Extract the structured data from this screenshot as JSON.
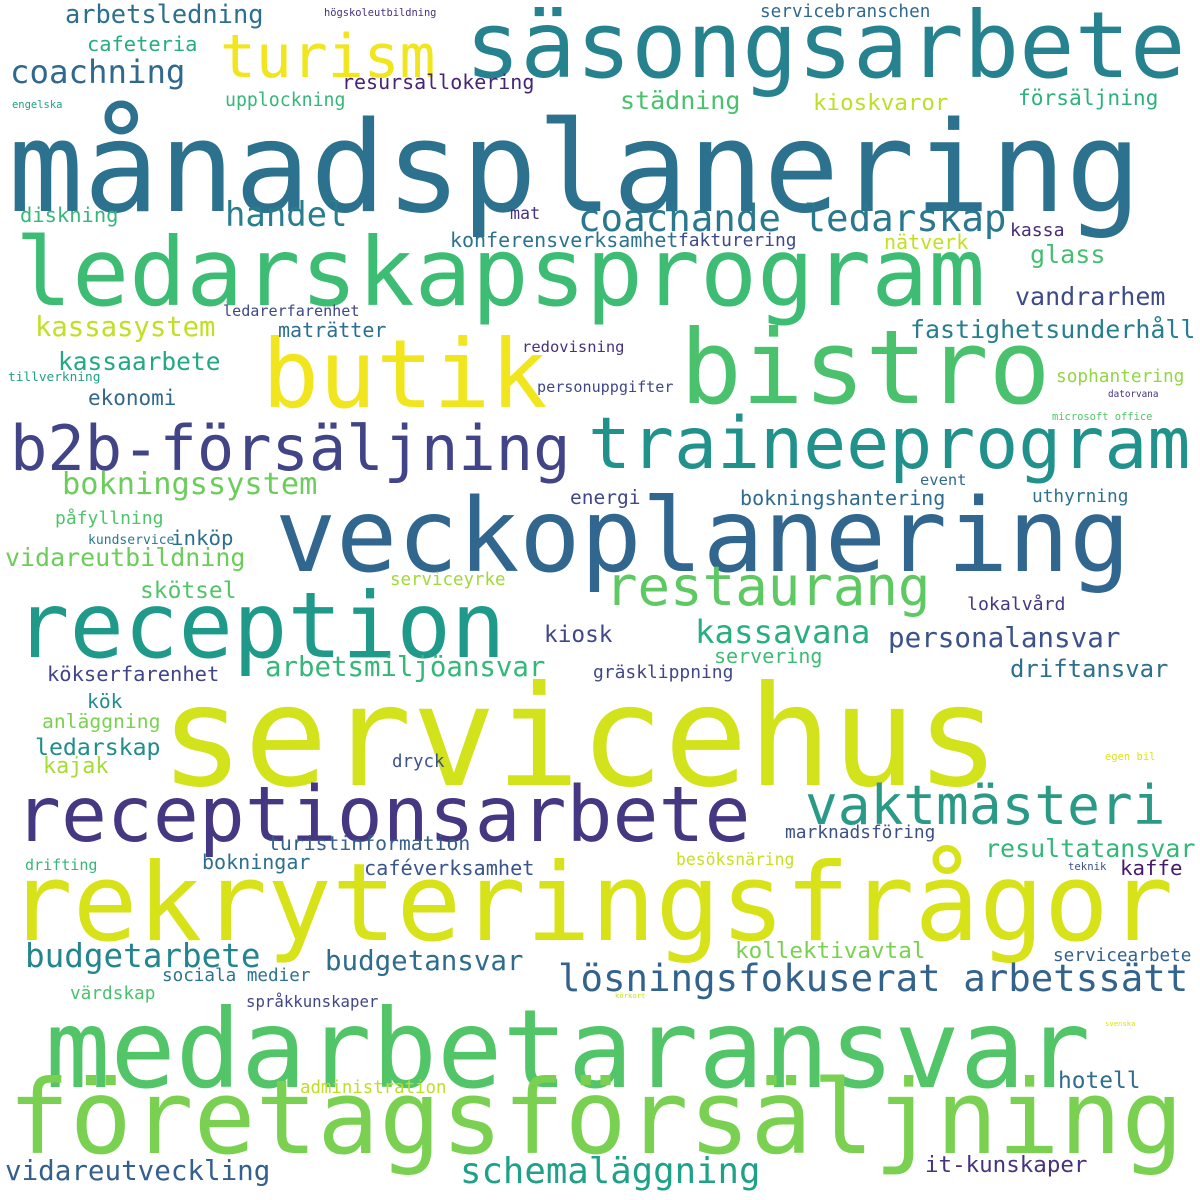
{
  "words": [
    {
      "text": "servicehus",
      "color": "#d2e21b"
    },
    {
      "text": "månadsplanering",
      "color": "#2c718e"
    },
    {
      "text": "rekryteringsfrågor",
      "color": "#d8e219"
    },
    {
      "text": "medarbetaransvar",
      "color": "#52c569"
    },
    {
      "text": "företagsförsäljning",
      "color": "#7ad151"
    },
    {
      "text": "veckoplanering",
      "color": "#31668e"
    },
    {
      "text": "ledarskapsprogram",
      "color": "#3dbc74"
    },
    {
      "text": "bistro",
      "color": "#4ac16d"
    },
    {
      "text": "säsongsarbete",
      "color": "#26828e"
    },
    {
      "text": "reception",
      "color": "#1f9a8a"
    },
    {
      "text": "receptionsarbete",
      "color": "#453781"
    },
    {
      "text": "butik",
      "color": "#f1e51d"
    },
    {
      "text": "b2b-försäljning",
      "color": "#414487"
    },
    {
      "text": "traineeprogram",
      "color": "#21918c"
    },
    {
      "text": "restaurang",
      "color": "#5ec962"
    },
    {
      "text": "vaktmästeri",
      "color": "#2a9a87"
    },
    {
      "text": "turism",
      "color": "#f1e51d"
    },
    {
      "text": "lösningsfokuserat arbetssätt",
      "color": "#33638d"
    },
    {
      "text": "schemaläggning",
      "color": "#1fa187"
    },
    {
      "text": "coachande ledarskap",
      "color": "#2a788e"
    },
    {
      "text": "bokningssystem",
      "color": "#6ccd5a"
    },
    {
      "text": "budgetarbete",
      "color": "#25858e"
    },
    {
      "text": "kassasystem",
      "color": "#c2df23"
    },
    {
      "text": "arbetsmiljöansvar",
      "color": "#35b779"
    },
    {
      "text": "vidareutbildning",
      "color": "#6ccd5a"
    },
    {
      "text": "vidareutveckling",
      "color": "#355f8d"
    },
    {
      "text": "coachning",
      "color": "#30698e"
    },
    {
      "text": "handel",
      "color": "#287d8e"
    },
    {
      "text": "kassaarbete",
      "color": "#22a884"
    },
    {
      "text": "kassavana",
      "color": "#29af7f"
    },
    {
      "text": "personalansvar",
      "color": "#3b528b"
    },
    {
      "text": "driftansvar",
      "color": "#2d708e"
    },
    {
      "text": "budgetansvar",
      "color": "#2f6c8e"
    },
    {
      "text": "resultatansvar",
      "color": "#35b779"
    },
    {
      "text": "fastighetsunderhåll",
      "color": "#277f8e"
    },
    {
      "text": "vandrarhem",
      "color": "#3e4a89"
    },
    {
      "text": "arbetsledning",
      "color": "#2d708e"
    },
    {
      "text": "ledarskap",
      "color": "#228c8d"
    },
    {
      "text": "turistinformation",
      "color": "#355f8d"
    },
    {
      "text": "glass",
      "color": "#44bf70"
    },
    {
      "text": "hotell",
      "color": "#2f6c8e"
    },
    {
      "text": "it-kunskaper",
      "color": "#46337e"
    },
    {
      "text": "städning",
      "color": "#4ac16d"
    },
    {
      "text": "försäljning",
      "color": "#2db27d"
    },
    {
      "text": "kioskvaror",
      "color": "#bddf26"
    },
    {
      "text": "konferensverksamhet",
      "color": "#2c728e"
    },
    {
      "text": "caféverksamhet",
      "color": "#39558c"
    },
    {
      "text": "kiosk",
      "color": "#3f4788"
    },
    {
      "text": "kaffe",
      "color": "#48186a"
    },
    {
      "text": "kollektivavtal",
      "color": "#7ad151"
    },
    {
      "text": "ekonomi",
      "color": "#31688e"
    },
    {
      "text": "resursallokering",
      "color": "#482475"
    },
    {
      "text": "cafeteria",
      "color": "#27ad81"
    },
    {
      "text": "upplockning",
      "color": "#35b779"
    },
    {
      "text": "diskning",
      "color": "#35b779"
    },
    {
      "text": "inköp",
      "color": "#2d708e"
    },
    {
      "text": "påfyllning",
      "color": "#50c46a"
    },
    {
      "text": "skötsel",
      "color": "#52c569"
    },
    {
      "text": "kökserfarenhet",
      "color": "#414487"
    },
    {
      "text": "kök",
      "color": "#228c8d"
    },
    {
      "text": "anläggning",
      "color": "#7ad151"
    },
    {
      "text": "kajak",
      "color": "#a8db34"
    },
    {
      "text": "servering",
      "color": "#3dbc74"
    },
    {
      "text": "gräsklippning",
      "color": "#404688"
    },
    {
      "text": "dryck",
      "color": "#3b528b"
    },
    {
      "text": "lokalvård",
      "color": "#453882"
    },
    {
      "text": "besöksnäring",
      "color": "#c8e020"
    },
    {
      "text": "marknadsföring",
      "color": "#3c4f8a"
    },
    {
      "text": "bokningar",
      "color": "#2e6f8e"
    },
    {
      "text": "sociala medier",
      "color": "#2c738e"
    },
    {
      "text": "värdskap",
      "color": "#4ac16d"
    },
    {
      "text": "språkkunskaper",
      "color": "#404688"
    },
    {
      "text": "administration",
      "color": "#bddf26"
    },
    {
      "text": "servicearbete",
      "color": "#34608d"
    },
    {
      "text": "bokningshantering",
      "color": "#2f6b8e"
    },
    {
      "text": "uthyrning",
      "color": "#2c728e"
    },
    {
      "text": "energi",
      "color": "#3f4788"
    },
    {
      "text": "event",
      "color": "#2f6b8e"
    },
    {
      "text": "serviceyrke",
      "color": "#a0da39"
    },
    {
      "text": "sophantering",
      "color": "#90d743"
    },
    {
      "text": "personuppgifter",
      "color": "#3f4788"
    },
    {
      "text": "redovisning",
      "color": "#46327e"
    },
    {
      "text": "maträtter",
      "color": "#2d708e"
    },
    {
      "text": "ledarerfarenhet",
      "color": "#3f4788"
    },
    {
      "text": "nätverk",
      "color": "#c2df23"
    },
    {
      "text": "fakturering",
      "color": "#3e4989"
    },
    {
      "text": "kassa",
      "color": "#472c7a"
    },
    {
      "text": "mat",
      "color": "#46327e"
    },
    {
      "text": "servicebranschen",
      "color": "#31688e"
    },
    {
      "text": "högskoleutbildning",
      "color": "#46337e"
    },
    {
      "text": "engelska",
      "color": "#1fa187"
    },
    {
      "text": "tillverkning",
      "color": "#1fa187"
    },
    {
      "text": "microsoft office",
      "color": "#52c569"
    },
    {
      "text": "kundservice",
      "color": "#2a788e"
    },
    {
      "text": "drifting",
      "color": "#35b779"
    },
    {
      "text": "teknik",
      "color": "#3b528b"
    },
    {
      "text": "egen bil",
      "color": "#dde318"
    },
    {
      "text": "datorvana",
      "color": "#46337e"
    },
    {
      "text": "körkort",
      "color": "#cae11f"
    },
    {
      "text": "svenska",
      "color": "#dde318"
    }
  ]
}
